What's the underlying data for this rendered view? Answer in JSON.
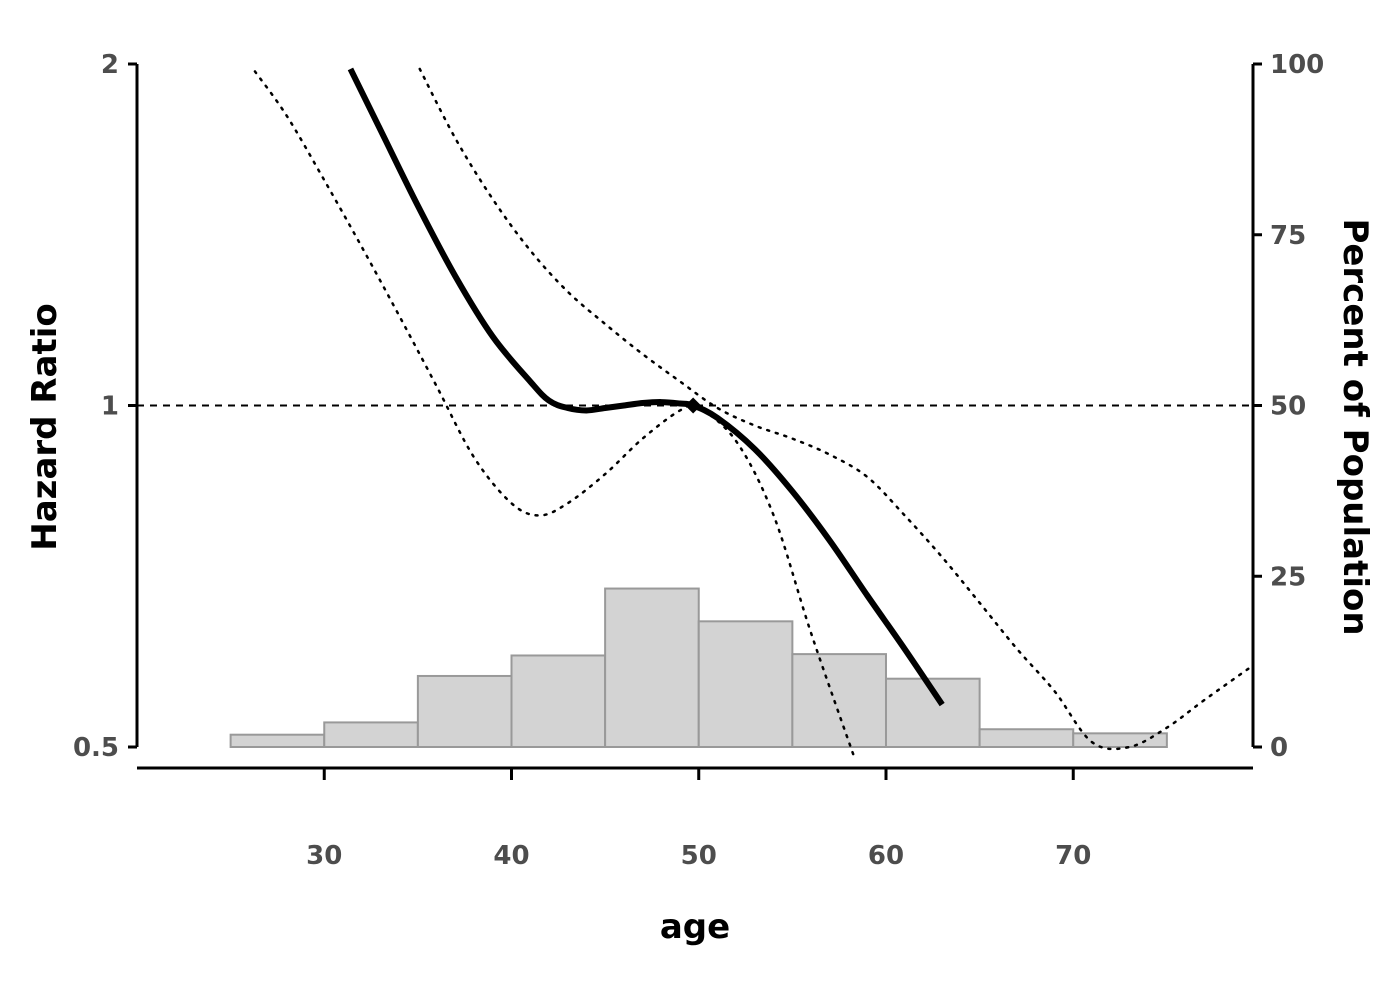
{
  "chart_data": {
    "type": "line",
    "xlabel": "age",
    "ylabel_left": "Hazard Ratio",
    "ylabel_right": "Percent of Population",
    "x_range": [
      20,
      79.6
    ],
    "x_ticks": [
      30,
      40,
      50,
      60,
      70
    ],
    "y_left_scale": "log",
    "y_left_range": [
      0.5,
      2
    ],
    "y_left_ticks": [
      0.5,
      1,
      2
    ],
    "y_left_tick_labels": [
      "0.5",
      "1",
      "2"
    ],
    "y_right_range": [
      0,
      100
    ],
    "y_right_ticks": [
      0,
      25,
      50,
      75,
      100
    ],
    "reference_line": 1,
    "reference_point": {
      "x": 49.7,
      "y": 1
    },
    "grid": false,
    "series": [
      {
        "role": "estimate",
        "style": "solid",
        "x": [
          31.4,
          33,
          35,
          37,
          39,
          41,
          42,
          43,
          44,
          45,
          46,
          47,
          48,
          49,
          49.7,
          51,
          53,
          55,
          57,
          59,
          61,
          63
        ],
        "y": [
          1.98,
          1.75,
          1.5,
          1.3,
          1.15,
          1.05,
          1.01,
          0.995,
          0.99,
          0.995,
          1.0,
          1.005,
          1.007,
          1.004,
          1.0,
          0.975,
          0.915,
          0.84,
          0.76,
          0.68,
          0.61,
          0.545
        ]
      },
      {
        "role": "upper-ci",
        "style": "dotted",
        "x": [
          35.1,
          37,
          39,
          41,
          43,
          45,
          47,
          49,
          51,
          53,
          55,
          57,
          59,
          61,
          63,
          65,
          67,
          69,
          71,
          73,
          75,
          77,
          79.6
        ],
        "y": [
          1.98,
          1.72,
          1.52,
          1.37,
          1.26,
          1.18,
          1.11,
          1.05,
          0.995,
          0.96,
          0.935,
          0.905,
          0.865,
          0.8,
          0.735,
          0.67,
          0.61,
          0.56,
          0.505,
          0.5,
          0.52,
          0.55,
          0.59
        ]
      },
      {
        "role": "lower-ci",
        "style": "dotted",
        "x": [
          26.3,
          28,
          30,
          32,
          34,
          36,
          38,
          40,
          41.5,
          43,
          45,
          47,
          49,
          50,
          52,
          54,
          56,
          58.3
        ],
        "y": [
          1.97,
          1.8,
          1.58,
          1.38,
          1.2,
          1.04,
          0.9,
          0.82,
          0.8,
          0.82,
          0.87,
          0.935,
          0.99,
          0.995,
          0.93,
          0.8,
          0.63,
          0.49
        ]
      }
    ],
    "histogram": {
      "bins": [
        25,
        30,
        35,
        40,
        45,
        50,
        55,
        60,
        65,
        70,
        75
      ],
      "values": [
        1.8,
        3.6,
        10.4,
        13.4,
        23.2,
        18.4,
        13.6,
        10.0,
        2.6,
        2.0
      ]
    },
    "colors": {
      "line": "#000000",
      "bar_fill": "#d3d3d3",
      "bar_stroke": "#999999",
      "tick_text": "#4d4d4d"
    }
  }
}
